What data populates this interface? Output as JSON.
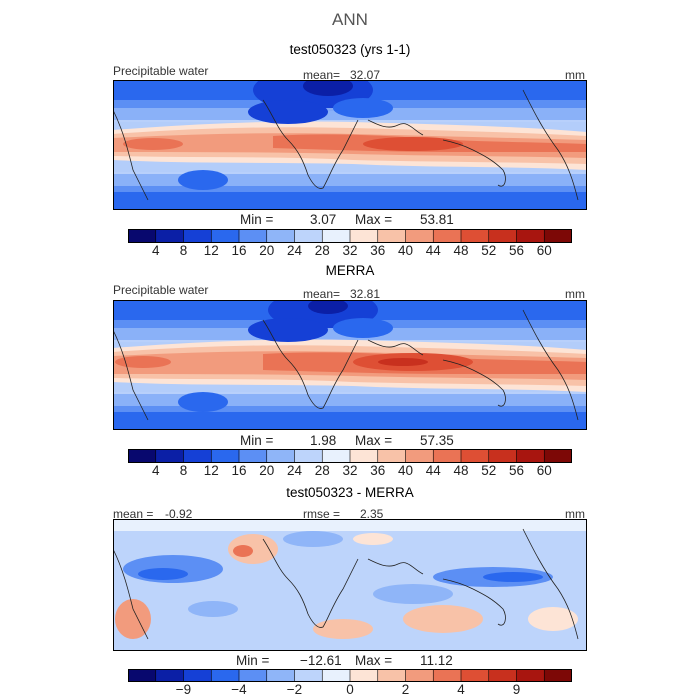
{
  "figure": {
    "title": "ANN"
  },
  "panels": [
    {
      "title": "test050323 (yrs 1-1)",
      "variable": "Precipitable water",
      "mean_label": "mean=",
      "mean_value": "32.07",
      "units": "mm",
      "min_label": "Min =",
      "min_value": "3.07",
      "max_label": "Max =",
      "max_value": "53.81"
    },
    {
      "title": "MERRA",
      "variable": "Precipitable water",
      "mean_label": "mean=",
      "mean_value": "32.81",
      "units": "mm",
      "min_label": "Min =",
      "min_value": "1.98",
      "max_label": "Max =",
      "max_value": "57.35"
    },
    {
      "title": "test050323 - MERRA",
      "mean_label": "mean =",
      "mean_value": "-0.92",
      "rmse_label": "rmse =",
      "rmse_value": "2.35",
      "units": "mm",
      "min_label": "Min =",
      "min_value": "−12.61",
      "max_label": "Max =",
      "max_value": "11.12"
    }
  ],
  "colorbars": {
    "absolute": {
      "colors": [
        "#08086e",
        "#0b1fa6",
        "#1540d6",
        "#2a68ee",
        "#5c8ff4",
        "#8fb5f8",
        "#bdd4fb",
        "#e8f1fd",
        "#fde4d6",
        "#f8c2a8",
        "#f29b7d",
        "#ea7355",
        "#de4f34",
        "#c8301e",
        "#a8150f",
        "#7d0806"
      ],
      "ticks": [
        "4",
        "8",
        "12",
        "16",
        "20",
        "24",
        "28",
        "32",
        "36",
        "40",
        "44",
        "48",
        "52",
        "56",
        "60"
      ]
    },
    "difference": {
      "colors": [
        "#08086e",
        "#0b1fa6",
        "#1540d6",
        "#2a68ee",
        "#5c8ff4",
        "#8fb5f8",
        "#bdd4fb",
        "#e8f1fd",
        "#fde4d6",
        "#f8c2a8",
        "#f29b7d",
        "#ea7355",
        "#de4f34",
        "#c8301e",
        "#a8150f",
        "#7d0806"
      ],
      "ticks": [
        "−9",
        "−4",
        "−2",
        "0",
        "2",
        "4",
        "9"
      ]
    }
  }
}
